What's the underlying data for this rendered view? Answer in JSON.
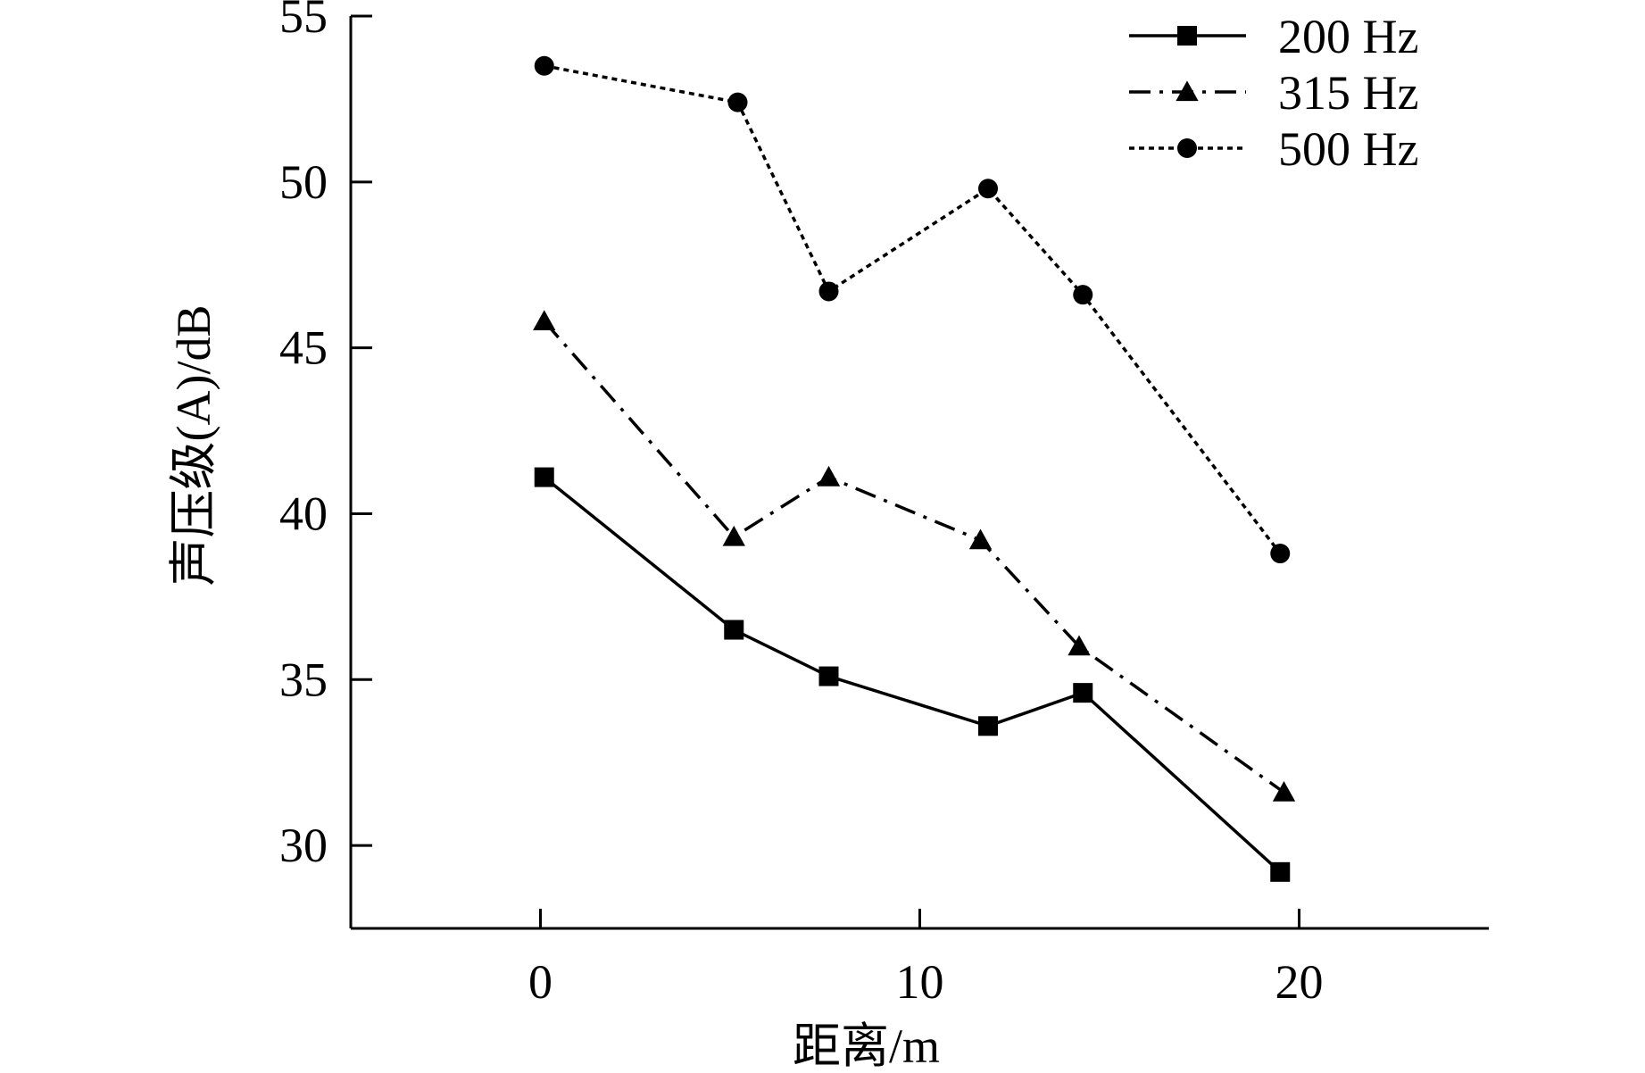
{
  "chart_data": {
    "type": "line",
    "title": "",
    "xlabel": "距离/m",
    "ylabel": "声压级(A)/dB",
    "xlim": [
      -5,
      25
    ],
    "ylim": [
      27.5,
      55
    ],
    "xticks": [
      0,
      10,
      20
    ],
    "yticks": [
      30,
      35,
      40,
      45,
      50,
      55
    ],
    "grid": false,
    "legend_position": "top-right",
    "series": [
      {
        "name": "200 Hz",
        "marker": "square",
        "line_style": "solid",
        "color": "#000000",
        "points": [
          [
            0.1,
            41.1
          ],
          [
            5.1,
            36.5
          ],
          [
            7.6,
            35.1
          ],
          [
            11.8,
            33.6
          ],
          [
            14.3,
            34.6
          ],
          [
            19.5,
            29.2
          ]
        ]
      },
      {
        "name": "315 Hz",
        "marker": "triangle",
        "line_style": "dash-dot",
        "color": "#000000",
        "points": [
          [
            0.1,
            45.8
          ],
          [
            5.1,
            39.3
          ],
          [
            7.6,
            41.1
          ],
          [
            11.6,
            39.2
          ],
          [
            14.2,
            36.0
          ],
          [
            19.6,
            31.6
          ]
        ]
      },
      {
        "name": "500 Hz",
        "marker": "circle",
        "line_style": "dotted",
        "color": "#000000",
        "points": [
          [
            0.1,
            53.5
          ],
          [
            5.2,
            52.4
          ],
          [
            7.6,
            46.7
          ],
          [
            11.8,
            49.8
          ],
          [
            14.3,
            46.6
          ],
          [
            19.5,
            38.8
          ]
        ]
      }
    ]
  }
}
